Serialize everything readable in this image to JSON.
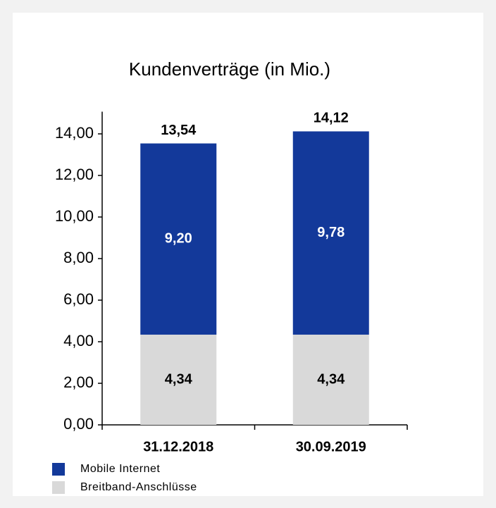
{
  "chart_data": {
    "type": "stacked_bar",
    "title": "Kundenverträge (in Mio.)",
    "categories": [
      "31.12.2018",
      "30.09.2019"
    ],
    "series": [
      {
        "name": "Breitband-Anschlüsse",
        "color": "#d9d9d9",
        "values": [
          4.34,
          4.34
        ],
        "value_labels": [
          "4,34",
          "4,34"
        ]
      },
      {
        "name": "Mobile Internet",
        "color": "#13399a",
        "values": [
          9.2,
          9.78
        ],
        "value_labels": [
          "9,20",
          "9,78"
        ]
      }
    ],
    "totals": [
      13.54,
      14.12
    ],
    "total_labels": [
      "13,54",
      "14,12"
    ],
    "ylim": [
      0,
      15
    ],
    "yticks": [
      {
        "value": 0,
        "label": "0,00"
      },
      {
        "value": 2,
        "label": "2,00"
      },
      {
        "value": 4,
        "label": "4,00"
      },
      {
        "value": 6,
        "label": "6,00"
      },
      {
        "value": 8,
        "label": "8,00"
      },
      {
        "value": 10,
        "label": "10,00"
      },
      {
        "value": 12,
        "label": "12,00"
      },
      {
        "value": 14,
        "label": "14,00"
      }
    ],
    "legend": "bottom-left"
  }
}
